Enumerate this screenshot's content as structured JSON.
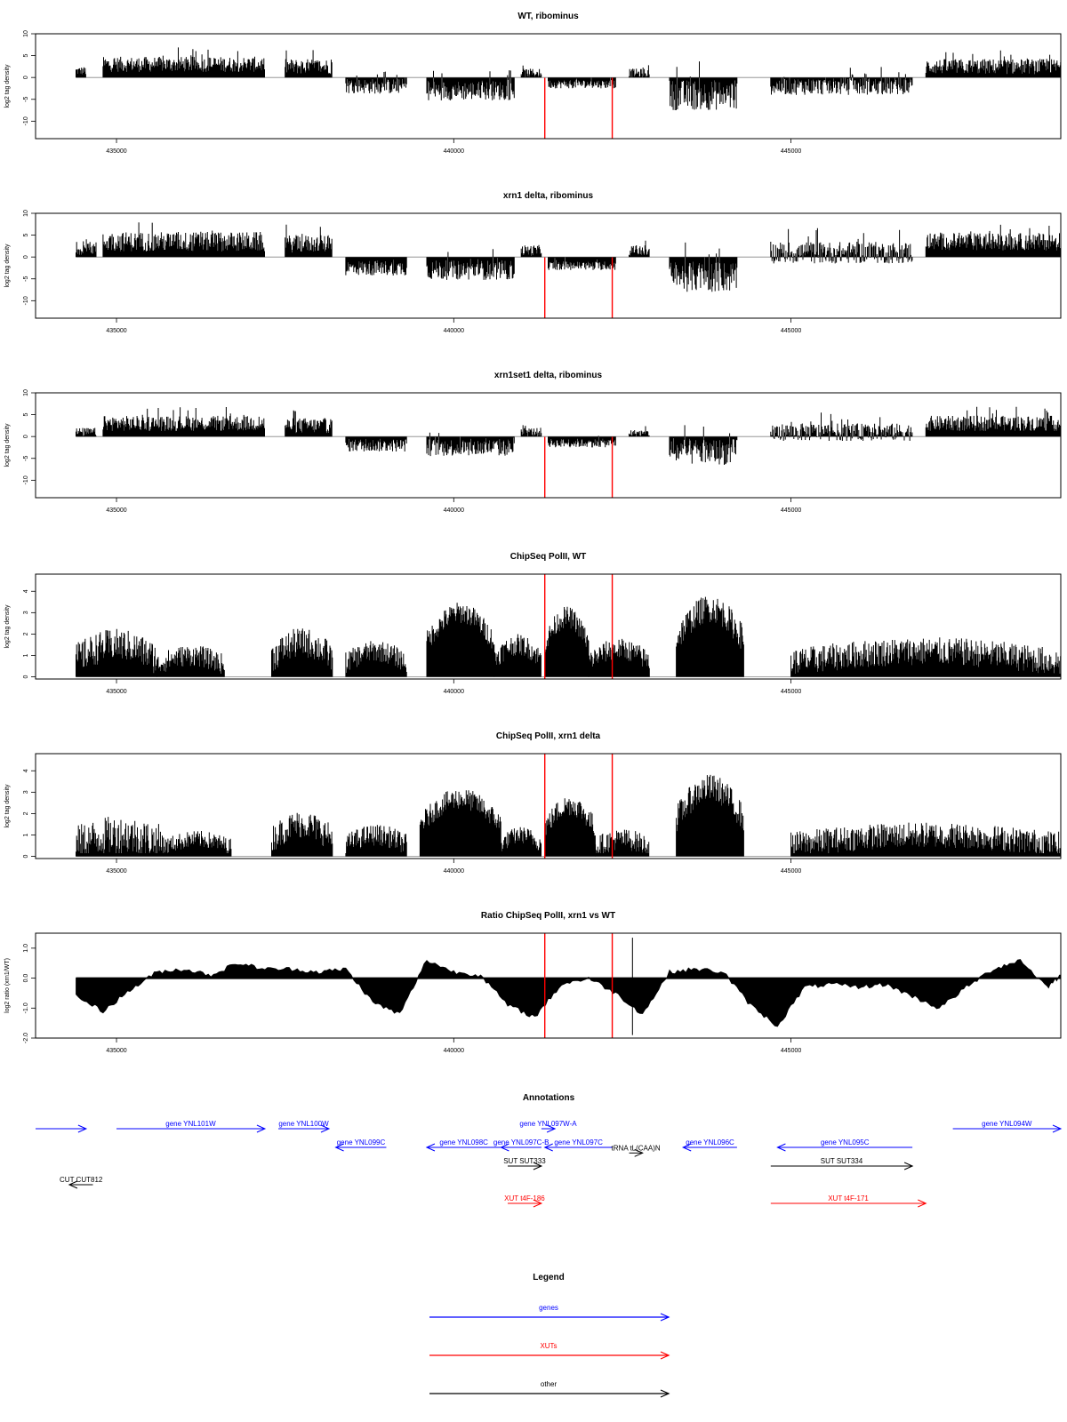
{
  "chart_data": [
    {
      "type": "bar",
      "title": "WT, ribominus",
      "ylabel": "log2 tag density",
      "ylim": [
        -14,
        10
      ],
      "yticks": [
        -10,
        -5,
        0,
        5,
        10
      ],
      "xlim": [
        433800,
        449000
      ],
      "xticks": [
        435000,
        440000,
        445000
      ],
      "tick_labels": [
        "435000",
        "440000",
        "445000"
      ],
      "vlines": [
        441350,
        442350
      ],
      "vline_color": "#ff0000",
      "segments": [
        {
          "x": [
            434400,
            434550
          ],
          "mean": 1.5,
          "amp": 2
        },
        {
          "x": [
            434800,
            437200
          ],
          "mean": 3,
          "amp": 3.5
        },
        {
          "x": [
            437500,
            438200
          ],
          "mean": 2.5,
          "amp": 3.5
        },
        {
          "x": [
            438400,
            439300
          ],
          "mean": -2,
          "amp": 3.5
        },
        {
          "x": [
            439600,
            440900
          ],
          "mean": -3,
          "amp": 4.5
        },
        {
          "x": [
            441000,
            441300
          ],
          "mean": 1,
          "amp": 2
        },
        {
          "x": [
            441400,
            442400
          ],
          "mean": -1.5,
          "amp": 2
        },
        {
          "x": [
            442600,
            442900
          ],
          "mean": 1,
          "amp": 2
        },
        {
          "x": [
            443200,
            444200
          ],
          "mean": -4,
          "amp": 7
        },
        {
          "x": [
            444700,
            446800
          ],
          "mean": -2,
          "amp": 4
        },
        {
          "x": [
            447000,
            449000
          ],
          "mean": 2.5,
          "amp": 3.5
        }
      ]
    },
    {
      "type": "bar",
      "title": "xrn1 delta, ribominus",
      "ylabel": "log2 tag density",
      "ylim": [
        -14,
        10
      ],
      "yticks": [
        -10,
        -5,
        0,
        5,
        10
      ],
      "xlim": [
        433800,
        449000
      ],
      "xticks": [
        435000,
        440000,
        445000
      ],
      "tick_labels": [
        "435000",
        "440000",
        "445000"
      ],
      "vlines": [
        441350,
        442350
      ],
      "vline_color": "#ff0000",
      "segments": [
        {
          "x": [
            434400,
            434700
          ],
          "mean": 2,
          "amp": 3
        },
        {
          "x": [
            434800,
            437200
          ],
          "mean": 3.5,
          "amp": 4.5
        },
        {
          "x": [
            437500,
            438200
          ],
          "mean": 3,
          "amp": 4
        },
        {
          "x": [
            438400,
            439300
          ],
          "mean": -2.5,
          "amp": 3.5
        },
        {
          "x": [
            439600,
            440900
          ],
          "mean": -3,
          "amp": 4.5
        },
        {
          "x": [
            441000,
            441300
          ],
          "mean": 1.5,
          "amp": 2.5
        },
        {
          "x": [
            441400,
            442400
          ],
          "mean": -2,
          "amp": 2
        },
        {
          "x": [
            442600,
            442900
          ],
          "mean": 1.5,
          "amp": 2.5
        },
        {
          "x": [
            443200,
            444200
          ],
          "mean": -4.5,
          "amp": 7
        },
        {
          "x": [
            444700,
            446800
          ],
          "mean": 1,
          "amp": 5
        },
        {
          "x": [
            447000,
            449000
          ],
          "mean": 3.5,
          "amp": 4
        }
      ]
    },
    {
      "type": "bar",
      "title": "xrn1set1 delta, ribominus",
      "ylabel": "log2 tag density",
      "ylim": [
        -14,
        10
      ],
      "yticks": [
        -10,
        -5,
        0,
        5,
        10
      ],
      "xlim": [
        433800,
        449000
      ],
      "xticks": [
        435000,
        440000,
        445000
      ],
      "tick_labels": [
        "435000",
        "440000",
        "445000"
      ],
      "vlines": [
        441350,
        442350
      ],
      "vline_color": "#ff0000",
      "segments": [
        {
          "x": [
            434400,
            434700
          ],
          "mean": 1,
          "amp": 2
        },
        {
          "x": [
            434800,
            437200
          ],
          "mean": 3,
          "amp": 3.5
        },
        {
          "x": [
            437500,
            438200
          ],
          "mean": 2.5,
          "amp": 3.5
        },
        {
          "x": [
            438400,
            439300
          ],
          "mean": -2,
          "amp": 3
        },
        {
          "x": [
            439600,
            440900
          ],
          "mean": -2.5,
          "amp": 4
        },
        {
          "x": [
            441000,
            441300
          ],
          "mean": 1,
          "amp": 2
        },
        {
          "x": [
            441400,
            442400
          ],
          "mean": -1.5,
          "amp": 2
        },
        {
          "x": [
            442600,
            442900
          ],
          "mean": 0.8,
          "amp": 1.5
        },
        {
          "x": [
            443200,
            444200
          ],
          "mean": -3.5,
          "amp": 6
        },
        {
          "x": [
            444700,
            446800
          ],
          "mean": 1,
          "amp": 4
        },
        {
          "x": [
            447000,
            449000
          ],
          "mean": 3,
          "amp": 3.5
        }
      ]
    },
    {
      "type": "bar",
      "title": "ChipSeq PolII, WT",
      "ylabel": "log2 tag density",
      "ylim": [
        -0.1,
        4.8
      ],
      "yticks": [
        0,
        1,
        2,
        3,
        4
      ],
      "xlim": [
        433800,
        449000
      ],
      "xticks": [
        435000,
        440000,
        445000
      ],
      "tick_labels": [
        "435000",
        "440000",
        "445000"
      ],
      "vlines": [
        441350,
        442350
      ],
      "vline_color": "#ff0000",
      "segments": [
        {
          "x": [
            434400,
            435600
          ],
          "mean": 1.5,
          "amp": 1.5
        },
        {
          "x": [
            435600,
            436600
          ],
          "mean": 1,
          "amp": 1
        },
        {
          "x": [
            437300,
            438200
          ],
          "mean": 1.6,
          "amp": 1.4
        },
        {
          "x": [
            438400,
            439300
          ],
          "mean": 1.2,
          "amp": 1
        },
        {
          "x": [
            439600,
            440600
          ],
          "mean": 3,
          "amp": 1
        },
        {
          "x": [
            440600,
            441300
          ],
          "mean": 1.5,
          "amp": 1
        },
        {
          "x": [
            441350,
            442000
          ],
          "mean": 2.8,
          "amp": 1
        },
        {
          "x": [
            442000,
            442900
          ],
          "mean": 1.3,
          "amp": 1
        },
        {
          "x": [
            443300,
            444300
          ],
          "mean": 3.2,
          "amp": 1.3
        },
        {
          "x": [
            445000,
            449000
          ],
          "mean": 1.2,
          "amp": 1.3
        }
      ]
    },
    {
      "type": "bar",
      "title": "ChipSeq PolII, xrn1 delta",
      "ylabel": "log2 tag density",
      "ylim": [
        -0.1,
        4.8
      ],
      "yticks": [
        0,
        1,
        2,
        3,
        4
      ],
      "xlim": [
        433800,
        449000
      ],
      "xticks": [
        435000,
        440000,
        445000
      ],
      "tick_labels": [
        "435000",
        "440000",
        "445000"
      ],
      "vlines": [
        441350,
        442350
      ],
      "vline_color": "#ff0000",
      "segments": [
        {
          "x": [
            434400,
            435700
          ],
          "mean": 1,
          "amp": 1.8
        },
        {
          "x": [
            435700,
            436700
          ],
          "mean": 0.8,
          "amp": 0.8
        },
        {
          "x": [
            437300,
            438200
          ],
          "mean": 1.5,
          "amp": 1.3
        },
        {
          "x": [
            438400,
            439300
          ],
          "mean": 1,
          "amp": 1
        },
        {
          "x": [
            439500,
            440700
          ],
          "mean": 2.7,
          "amp": 1
        },
        {
          "x": [
            440700,
            441300
          ],
          "mean": 1,
          "amp": 0.8
        },
        {
          "x": [
            441350,
            442100
          ],
          "mean": 2.4,
          "amp": 1
        },
        {
          "x": [
            442100,
            442900
          ],
          "mean": 0.8,
          "amp": 1
        },
        {
          "x": [
            443300,
            444300
          ],
          "mean": 3.2,
          "amp": 1.3
        },
        {
          "x": [
            445000,
            449000
          ],
          "mean": 1,
          "amp": 1.2
        }
      ]
    },
    {
      "type": "area",
      "title": "Ratio ChipSeq PolII, xrn1 vs WT",
      "ylabel": "log2 ratio (xrn1/WT)",
      "ylim": [
        -2,
        1.5
      ],
      "yticks": [
        -2.0,
        -1.0,
        0.0,
        1.0
      ],
      "ytick_labels": [
        "-2.0",
        "-1.0",
        "0.0",
        "1.0"
      ],
      "xlim": [
        433800,
        449000
      ],
      "xticks": [
        435000,
        440000,
        445000
      ],
      "tick_labels": [
        "435000",
        "440000",
        "445000"
      ],
      "vlines": [
        441350,
        442350
      ],
      "vline_color": "#ff0000",
      "x": [
        434400,
        434800,
        435200,
        435600,
        436000,
        436400,
        436800,
        437200,
        437600,
        438000,
        438400,
        438800,
        439200,
        439600,
        440000,
        440400,
        440800,
        441200,
        441600,
        442000,
        442400,
        442800,
        443200,
        443600,
        444000,
        444400,
        444800,
        445200,
        445600,
        446000,
        446400,
        446800,
        447200,
        447600,
        448000,
        448400,
        448800,
        449000
      ],
      "y": [
        -0.6,
        -1.1,
        -0.4,
        0.2,
        0.3,
        0.1,
        0.5,
        0.3,
        0.3,
        0.2,
        0.3,
        -0.8,
        -1.2,
        0.6,
        0.2,
        0.1,
        -0.9,
        -1.3,
        -0.2,
        0.0,
        -0.5,
        -1.2,
        0.2,
        0.3,
        0.2,
        -0.9,
        -1.6,
        -0.3,
        -0.2,
        -0.3,
        -0.2,
        -0.6,
        -1.0,
        -0.3,
        0.3,
        0.6,
        -0.3,
        0.1
      ]
    }
  ],
  "annotations": {
    "title": "Annotations",
    "features": [
      {
        "label": "",
        "color": "#0000ff",
        "x1": 433800,
        "x2": 434550,
        "row": 0,
        "dir": 1
      },
      {
        "label": "gene YNL101W",
        "color": "#0000ff",
        "x1": 435000,
        "x2": 437200,
        "row": 0,
        "dir": 1
      },
      {
        "label": "gene YNL100W",
        "color": "#0000ff",
        "x1": 437400,
        "x2": 438150,
        "row": 0,
        "dir": 1
      },
      {
        "label": "gene YNL099C",
        "color": "#0000ff",
        "x1": 438250,
        "x2": 439000,
        "row": 1,
        "dir": -1
      },
      {
        "label": "gene YNL098C",
        "color": "#0000ff",
        "x1": 439600,
        "x2": 440700,
        "row": 1,
        "dir": -1
      },
      {
        "label": "gene YNL097C-B",
        "color": "#0000ff",
        "x1": 440700,
        "x2": 441300,
        "row": 1,
        "dir": -1
      },
      {
        "label": "gene YNL097W-A",
        "color": "#0000ff",
        "x1": 441300,
        "x2": 441500,
        "row": 0,
        "dir": 1
      },
      {
        "label": "gene YNL097C",
        "color": "#0000ff",
        "x1": 441350,
        "x2": 442350,
        "row": 1,
        "dir": -1
      },
      {
        "label": "tRNA tL(CAA)N",
        "color": "#000000",
        "x1": 442600,
        "x2": 442800,
        "row": 1.3,
        "dir": 1
      },
      {
        "label": "gene YNL096C",
        "color": "#0000ff",
        "x1": 443400,
        "x2": 444200,
        "row": 1,
        "dir": -1
      },
      {
        "label": "gene YNL095C",
        "color": "#0000ff",
        "x1": 444800,
        "x2": 446800,
        "row": 1,
        "dir": -1
      },
      {
        "label": "gene YNL094W",
        "color": "#0000ff",
        "x1": 447400,
        "x2": 449000,
        "row": 0,
        "dir": 1
      },
      {
        "label": "SUT SUT333",
        "color": "#000000",
        "x1": 440800,
        "x2": 441300,
        "row": 2,
        "dir": 1
      },
      {
        "label": "SUT SUT334",
        "color": "#000000",
        "x1": 444700,
        "x2": 446800,
        "row": 2,
        "dir": 1
      },
      {
        "label": "CUT CUT812",
        "color": "#000000",
        "x1": 434300,
        "x2": 434650,
        "row": 3,
        "dir": -1
      },
      {
        "label": "XUT t4F-186",
        "color": "#ff0000",
        "x1": 440800,
        "x2": 441300,
        "row": 4,
        "dir": 1
      },
      {
        "label": "XUT t4F-171",
        "color": "#ff0000",
        "x1": 444700,
        "x2": 447000,
        "row": 4,
        "dir": 1
      }
    ]
  },
  "legend": {
    "title": "Legend",
    "items": [
      {
        "label": "genes",
        "color": "#0000ff"
      },
      {
        "label": "XUTs",
        "color": "#ff0000"
      },
      {
        "label": "other",
        "color": "#000000"
      }
    ]
  }
}
